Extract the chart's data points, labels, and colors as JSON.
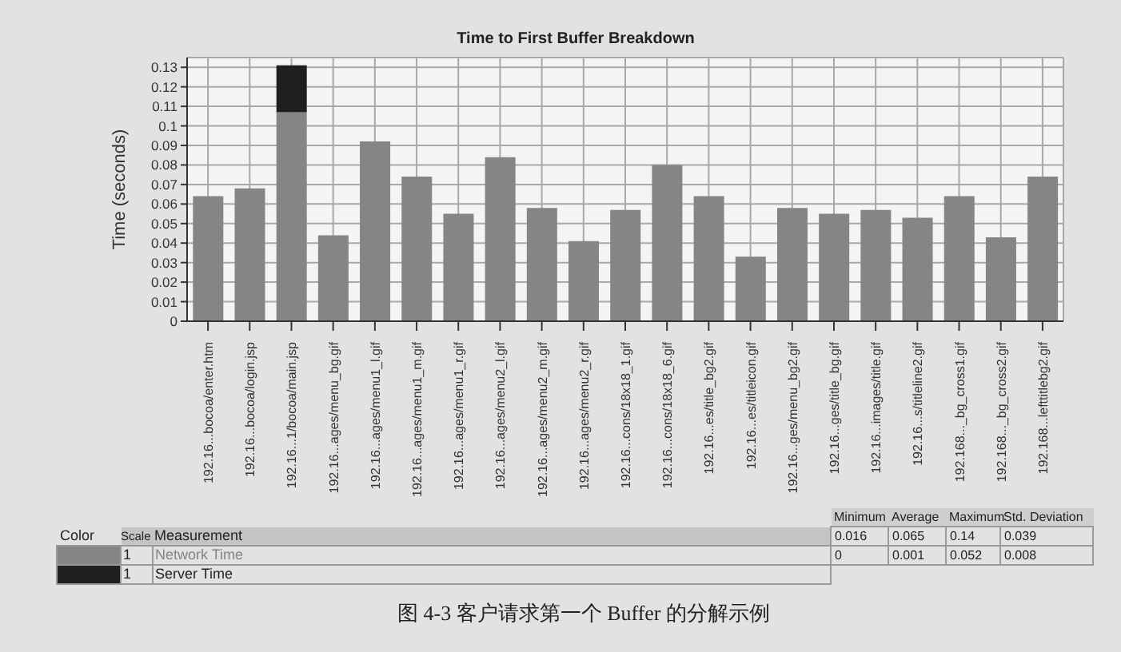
{
  "chart_data": {
    "type": "bar",
    "title": "Time to First Buffer Breakdown",
    "ylabel": "Time (seconds)",
    "categories": [
      "192.16...bocoa/enter.htm",
      "192.16...bocoa/login.jsp",
      "192.16...1/bocoa/main.jsp",
      "192.16...ages/menu_bg.gif",
      "192.16...ages/menu1_l.gif",
      "192.16...ages/menu1_m.gif",
      "192.16...ages/menu1_r.gif",
      "192.16...ages/menu2_l.gif",
      "192.16...ages/menu2_m.gif",
      "192.16...ages/menu2_r.gif",
      "192.16...cons/18x18_1.gif",
      "192.16...cons/18x18_6.gif",
      "192.16...es/title_bg2.gif",
      "192.16...es/titleicon.gif",
      "192.16...ges/menu_bg2.gif",
      "192.16...ges/title_bg.gif",
      "192.16...images/title.gif",
      "192.16...s/titleline2.gif",
      "192.168..._bg_cross1.gif",
      "192.168..._bg_cross2.gif",
      "192.168...lefttitlebg2.gif"
    ],
    "series": [
      {
        "name": "Network Time",
        "color": "#858585",
        "values": [
          0.064,
          0.068,
          0.107,
          0.044,
          0.092,
          0.074,
          0.055,
          0.084,
          0.058,
          0.041,
          0.057,
          0.08,
          0.064,
          0.033,
          0.058,
          0.055,
          0.057,
          0.053,
          0.064,
          0.043,
          0.074
        ]
      },
      {
        "name": "Server Time",
        "color": "#1e1e1e",
        "values": [
          0,
          0,
          0.024,
          0,
          0,
          0,
          0,
          0,
          0,
          0,
          0,
          0,
          0,
          0,
          0,
          0,
          0,
          0,
          0,
          0,
          0
        ]
      }
    ],
    "stacked": true,
    "ylim": [
      0,
      0.135
    ],
    "yticks": [
      0,
      0.01,
      0.02,
      0.03,
      0.04,
      0.05,
      0.06,
      0.07,
      0.08,
      0.09,
      0.1,
      0.11,
      0.12,
      0.13
    ],
    "grid": true,
    "legend": "bottom",
    "annotations": [
      "Color",
      "Scale",
      "Measurement",
      "Minimum",
      "Average",
      "Maximum",
      "Std. Deviation",
      "0.016",
      "0.065",
      "0.14",
      "0.039",
      "0",
      "0.001",
      "0.052",
      "0.008",
      "1",
      "1",
      "图 4-3  客户请求第一个 Buffer 的分解示例"
    ]
  }
}
